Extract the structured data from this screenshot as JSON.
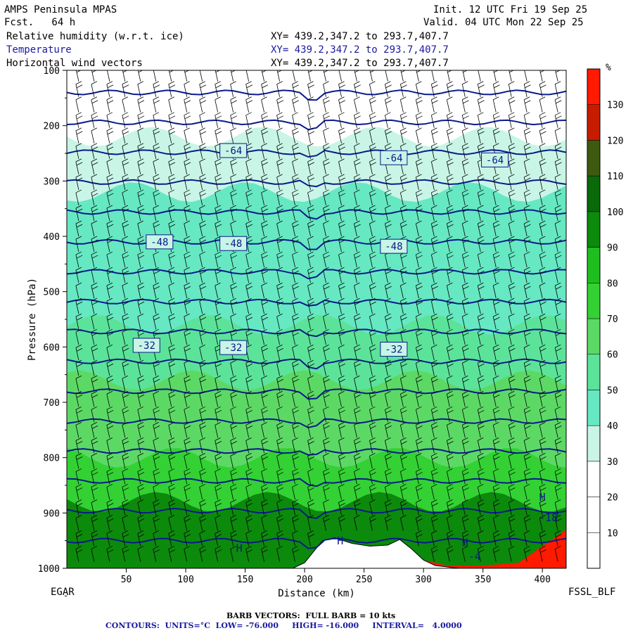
{
  "header": {
    "model": "AMPS Peninsula MPAS",
    "fcst": "Fcst.   64 h",
    "init": "Init. 12 UTC Fri 19 Sep 25",
    "valid": "Valid. 04 UTC Mon 22 Sep 25",
    "field1": "Relative humidity (w.r.t. ice)",
    "field2": "Temperature",
    "field3": "Horizontal wind vectors",
    "xy1": "XY= 439.2,347.2 to 293.7,407.7",
    "xy2": "XY= 439.2,347.2 to 293.7,407.7",
    "xy3": "XY= 439.2,347.2 to 293.7,407.7"
  },
  "footer": {
    "left_station": "EGAR",
    "right_station": "FSSL_BLF",
    "barb_note": "BARB VECTORS:  FULL BARB = 10 kts",
    "contour_note": "CONTOURS:  UNITS=°C  LOW= -76.000     HIGH= -16.000     INTERVAL=   4.0000"
  },
  "colors": {
    "temp_contour": "#0a1a8c",
    "barb": "#000000",
    "terrain": "#ffffff"
  },
  "chart_data": {
    "type": "heatmap",
    "title": "",
    "xlabel": "Distance (km)",
    "ylabel": "Pressure (hPa)",
    "xlim": [
      0,
      420
    ],
    "ylim": [
      1000,
      100
    ],
    "x_ticks": [
      "50",
      "100",
      "150",
      "200",
      "250",
      "300",
      "350",
      "400"
    ],
    "y_ticks": [
      "100",
      "200",
      "300",
      "400",
      "500",
      "600",
      "700",
      "800",
      "900",
      "1000"
    ],
    "colorbar": {
      "unit": "%",
      "labels": [
        "10",
        "20",
        "30",
        "40",
        "50",
        "60",
        "70",
        "80",
        "90",
        "100",
        "110",
        "120",
        "130"
      ],
      "bins": [
        {
          "low": 0,
          "high": 10,
          "color": "#ffffff"
        },
        {
          "low": 10,
          "high": 20,
          "color": "#ffffff"
        },
        {
          "low": 20,
          "high": 30,
          "color": "#ffffff"
        },
        {
          "low": 30,
          "high": 40,
          "color": "#c8f5e6"
        },
        {
          "low": 40,
          "high": 50,
          "color": "#66e8c2"
        },
        {
          "low": 50,
          "high": 60,
          "color": "#5ce39a"
        },
        {
          "low": 60,
          "high": 70,
          "color": "#5cd965"
        },
        {
          "low": 70,
          "high": 80,
          "color": "#33d133"
        },
        {
          "low": 80,
          "high": 90,
          "color": "#1fbe1f"
        },
        {
          "low": 90,
          "high": 100,
          "color": "#0c8a0c"
        },
        {
          "low": 100,
          "high": 110,
          "color": "#0a6a0a"
        },
        {
          "low": 110,
          "high": 120,
          "color": "#3d5a0f"
        },
        {
          "low": 120,
          "high": 130,
          "color": "#c71c00"
        },
        {
          "low": 130,
          "high": 140,
          "color": "#ff1a00"
        }
      ]
    },
    "rh_layers": [
      {
        "p_top": 220,
        "p_bot": 320,
        "rh": 35
      },
      {
        "p_top": 320,
        "p_bot": 450,
        "rh": 42
      },
      {
        "p_top": 450,
        "p_bot": 560,
        "rh": 48
      },
      {
        "p_top": 560,
        "p_bot": 660,
        "rh": 55
      },
      {
        "p_top": 660,
        "p_bot": 800,
        "rh": 65
      },
      {
        "p_top": 800,
        "p_bot": 880,
        "rh": 75
      },
      {
        "p_top": 880,
        "p_bot": 1000,
        "rh": 92
      }
    ],
    "temperature_contour_labels": [
      {
        "value": "-64",
        "x": 140,
        "p": 245
      },
      {
        "value": "-64",
        "x": 275,
        "p": 258
      },
      {
        "value": "-64",
        "x": 360,
        "p": 262
      },
      {
        "value": "-48",
        "x": 78,
        "p": 410
      },
      {
        "value": "-48",
        "x": 140,
        "p": 413
      },
      {
        "value": "-48",
        "x": 275,
        "p": 418
      },
      {
        "value": "-32",
        "x": 67,
        "p": 597
      },
      {
        "value": "-32",
        "x": 140,
        "p": 601
      },
      {
        "value": "-32",
        "x": 275,
        "p": 604
      }
    ],
    "temperature_contour_levels": [
      -76,
      -72,
      -68,
      -64,
      -60,
      -56,
      -52,
      -48,
      -44,
      -40,
      -36,
      -32,
      -28,
      -24,
      -20,
      -16
    ],
    "annotations": [
      {
        "text": "H",
        "x": 145,
        "p": 970
      },
      {
        "text": "H",
        "x": 230,
        "p": 957
      },
      {
        "text": "H",
        "x": 335,
        "p": 960
      },
      {
        "text": "H",
        "x": 400,
        "p": 878
      },
      {
        "text": "-17.31",
        "x": 232,
        "p": 975
      },
      {
        "text": "-18",
        "x": 405,
        "p": 915
      },
      {
        "text": "-4",
        "x": 343,
        "p": 985
      }
    ],
    "terrain_km": [
      0,
      190,
      200,
      215,
      225,
      240,
      255,
      270,
      280,
      290,
      300,
      310,
      330,
      350,
      370,
      380,
      390,
      400,
      420
    ],
    "terrain_surface_hpa": [
      1000,
      1000,
      990,
      950,
      945,
      955,
      960,
      958,
      948,
      965,
      985,
      995,
      1000,
      1000,
      1000,
      1000,
      1000,
      1000,
      1000
    ],
    "wind_barbs": "westerly/south-westerly barbs, ~10-30 kts aloft, weaker near surface"
  }
}
